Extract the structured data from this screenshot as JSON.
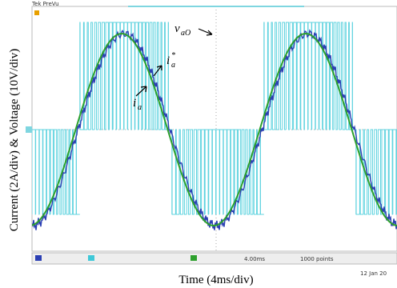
{
  "header": {
    "brand": "Tek PreVu"
  },
  "axes": {
    "y_label": "Current (2A/div) & Voltage (10V/div)",
    "x_label": "Time (4ms/div)"
  },
  "annotations": [
    {
      "symbol": "v",
      "subscript": "aO",
      "superscript": ""
    },
    {
      "symbol": "i",
      "subscript": "a",
      "superscript": "*"
    },
    {
      "symbol": "i",
      "subscript": "a",
      "superscript": ""
    }
  ],
  "status": {
    "time_base": "4.00ms",
    "points": "1000 points",
    "date": "12 Jan 20"
  }
}
